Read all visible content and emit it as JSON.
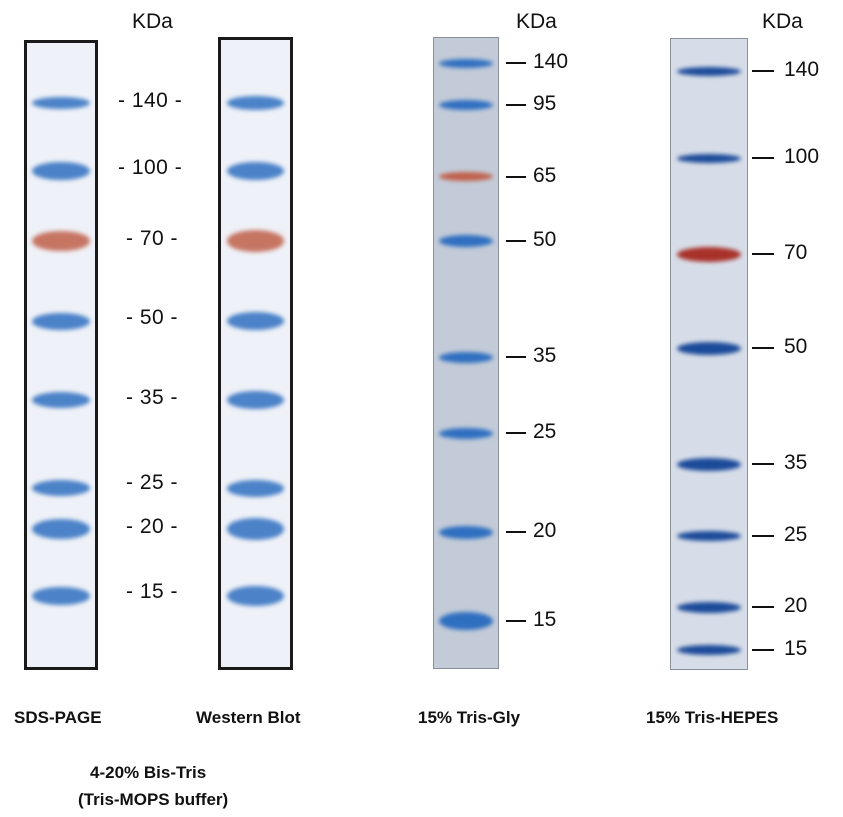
{
  "unit_label": "KDa",
  "lanes": [
    {
      "id": "sds-page",
      "caption": "SDS-PAGE",
      "bands": [
        {
          "kda": "140",
          "color": "blue"
        },
        {
          "kda": "100",
          "color": "blue"
        },
        {
          "kda": "70",
          "color": "red"
        },
        {
          "kda": "50",
          "color": "blue"
        },
        {
          "kda": "35",
          "color": "blue"
        },
        {
          "kda": "25",
          "color": "blue"
        },
        {
          "kda": "20",
          "color": "blue"
        },
        {
          "kda": "15",
          "color": "blue"
        }
      ]
    },
    {
      "id": "western-blot",
      "caption": "Western Blot",
      "bands": [
        {
          "kda": "140",
          "color": "blue"
        },
        {
          "kda": "100",
          "color": "blue"
        },
        {
          "kda": "70",
          "color": "red"
        },
        {
          "kda": "50",
          "color": "blue"
        },
        {
          "kda": "35",
          "color": "blue"
        },
        {
          "kda": "25",
          "color": "blue"
        },
        {
          "kda": "20",
          "color": "blue"
        },
        {
          "kda": "15",
          "color": "blue"
        }
      ]
    },
    {
      "id": "tris-gly",
      "caption": "15% Tris-Gly",
      "bands": [
        {
          "kda": "140",
          "color": "blue"
        },
        {
          "kda": "95",
          "color": "blue"
        },
        {
          "kda": "65",
          "color": "red"
        },
        {
          "kda": "50",
          "color": "blue"
        },
        {
          "kda": "35",
          "color": "blue"
        },
        {
          "kda": "25",
          "color": "blue"
        },
        {
          "kda": "20",
          "color": "blue"
        },
        {
          "kda": "15",
          "color": "blue"
        }
      ]
    },
    {
      "id": "tris-hepes",
      "caption": "15% Tris-HEPES",
      "bands": [
        {
          "kda": "140",
          "color": "blue"
        },
        {
          "kda": "100",
          "color": "blue"
        },
        {
          "kda": "70",
          "color": "red"
        },
        {
          "kda": "50",
          "color": "blue"
        },
        {
          "kda": "35",
          "color": "blue"
        },
        {
          "kda": "25",
          "color": "blue"
        },
        {
          "kda": "20",
          "color": "blue"
        },
        {
          "kda": "15",
          "color": "blue"
        }
      ]
    }
  ],
  "left_markers": [
    "- 140 -",
    "- 100 -",
    "- 70 -",
    "- 50 -",
    "- 35 -",
    "- 25 -",
    "- 20 -",
    "- 15 -"
  ],
  "tris_gly_ticks": [
    "140",
    "95",
    "65",
    "50",
    "35",
    "25",
    "20",
    "15"
  ],
  "tris_hepes_ticks": [
    "140",
    "100",
    "70",
    "50",
    "35",
    "25",
    "20",
    "15"
  ],
  "gel_note_line1": "4-20% Bis-Tris",
  "gel_note_line2": "(Tris-MOPS buffer)",
  "colors": {
    "blue_band": "#2f6fc0",
    "red_band": "#c0604a",
    "dark_blue_band": "#1b4a99",
    "dark_red_band": "#a8322a"
  }
}
